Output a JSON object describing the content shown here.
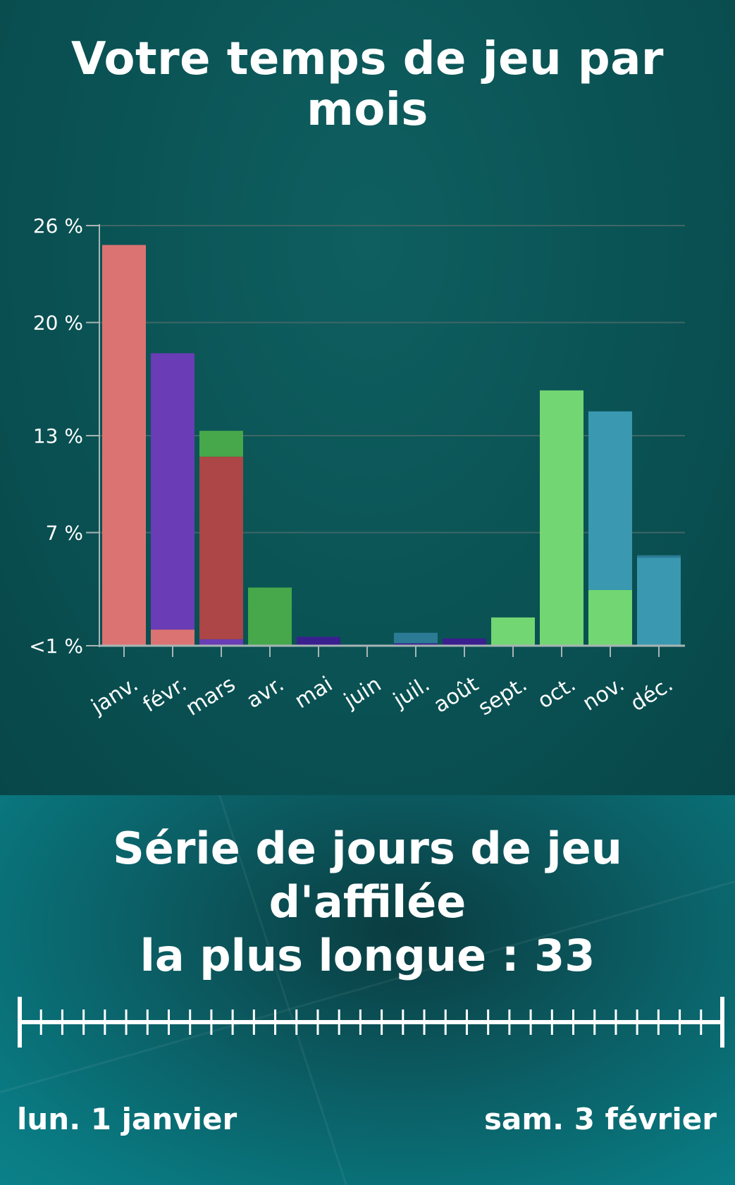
{
  "title": "Votre temps de jeu par mois",
  "chart_data": {
    "type": "bar",
    "stacked": true,
    "categories": [
      "janv.",
      "févr.",
      "mars",
      "avr.",
      "mai",
      "juin",
      "juil.",
      "août",
      "sept.",
      "oct.",
      "nov.",
      "déc."
    ],
    "y_ticks": [
      "<1 %",
      "7 %",
      "13 %",
      "20 %",
      "26 %"
    ],
    "y_tick_values": [
      0,
      7,
      13,
      20,
      26
    ],
    "ylim": [
      0,
      26
    ],
    "grid": true,
    "xlabel": "",
    "ylabel": "",
    "stacks": [
      [
        {
          "value": 24.8,
          "color": "#db7372"
        }
      ],
      [
        {
          "value": 1.0,
          "color": "#db7372"
        },
        {
          "value": 17.1,
          "color": "#6a3cb5"
        }
      ],
      [
        {
          "value": 0.4,
          "color": "#6a3cb5"
        },
        {
          "value": 11.3,
          "color": "#ad4646"
        },
        {
          "value": 1.6,
          "color": "#46a84a"
        }
      ],
      [
        {
          "value": 3.6,
          "color": "#46a84a"
        }
      ],
      [
        {
          "value": 0.55,
          "color": "#3a1f8f"
        }
      ],
      [],
      [
        {
          "value": 0.15,
          "color": "#3a1f8f"
        },
        {
          "value": 0.65,
          "color": "#2b7b95"
        }
      ],
      [
        {
          "value": 0.45,
          "color": "#3a1f8f"
        }
      ],
      [
        {
          "value": 1.75,
          "color": "#72d672"
        }
      ],
      [
        {
          "value": 15.8,
          "color": "#72d672"
        }
      ],
      [
        {
          "value": 3.45,
          "color": "#72d672"
        },
        {
          "value": 11.05,
          "color": "#3a99b1"
        }
      ],
      [
        {
          "value": 5.45,
          "color": "#3a99b1"
        },
        {
          "value": 0.15,
          "color": "#2b7b95"
        }
      ]
    ]
  },
  "streak": {
    "title_line1": "Série de jours de jeu d'affilée",
    "title_line2": "la plus longue : 33",
    "start_label": "lun. 1 janvier",
    "end_label": "sam. 3 février",
    "days": 33
  },
  "colors": {
    "axis": "#a8b5b5",
    "grid": "#3e6666",
    "text": "#ffffff"
  }
}
